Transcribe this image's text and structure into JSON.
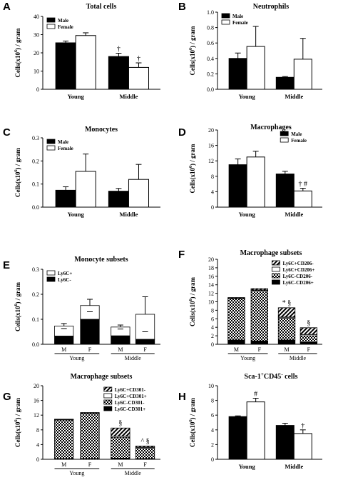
{
  "chart_data": [
    {
      "panel": "A",
      "type": "bar",
      "title": "Total cells",
      "categories": [
        "Young",
        "Middle"
      ],
      "ylim": [
        0,
        40
      ],
      "yticks": [
        0,
        10,
        20,
        30,
        40
      ],
      "legend": "top-left",
      "series": [
        {
          "name": "Male",
          "color": "#000000",
          "values": [
            25.5,
            18
          ],
          "errors": [
            1,
            1.8
          ],
          "annotations": [
            "",
            "†"
          ]
        },
        {
          "name": "Female",
          "color": "#ffffff",
          "values": [
            29.5,
            12
          ],
          "errors": [
            1.5,
            2.5
          ],
          "annotations": [
            "",
            "†"
          ]
        }
      ]
    },
    {
      "panel": "B",
      "type": "bar",
      "title": "Neutrophils",
      "categories": [
        "Young",
        "Middle"
      ],
      "ylim": [
        0,
        1.0
      ],
      "yticks": [
        0.0,
        0.2,
        0.4,
        0.6,
        0.8,
        1.0
      ],
      "legend": "top-left",
      "series": [
        {
          "name": "Male",
          "color": "#000000",
          "values": [
            0.4,
            0.155
          ],
          "errors": [
            0.07,
            0.01
          ],
          "annotations": [
            "",
            ""
          ]
        },
        {
          "name": "Female",
          "color": "#ffffff",
          "values": [
            0.555,
            0.39
          ],
          "errors": [
            0.26,
            0.27
          ],
          "annotations": [
            "",
            ""
          ]
        }
      ]
    },
    {
      "panel": "C",
      "type": "bar",
      "title": "Monocytes",
      "categories": [
        "Young",
        "Middle"
      ],
      "ylim": [
        0,
        0.3
      ],
      "yticks": [
        0.0,
        0.1,
        0.2,
        0.3
      ],
      "legend": "top-left",
      "series": [
        {
          "name": "Male",
          "color": "#000000",
          "values": [
            0.073,
            0.069
          ],
          "errors": [
            0.015,
            0.012
          ],
          "annotations": [
            "",
            ""
          ]
        },
        {
          "name": "Female",
          "color": "#ffffff",
          "values": [
            0.155,
            0.12
          ],
          "errors": [
            0.075,
            0.065
          ],
          "annotations": [
            "",
            ""
          ]
        }
      ]
    },
    {
      "panel": "D",
      "type": "bar",
      "title": "Macrophages",
      "categories": [
        "Young",
        "Middle"
      ],
      "ylim": [
        0,
        20
      ],
      "yticks": [
        0,
        4,
        8,
        12,
        16,
        20
      ],
      "legend": "top-right",
      "series": [
        {
          "name": "Male",
          "color": "#000000",
          "values": [
            11,
            8.6
          ],
          "errors": [
            1.5,
            0.7
          ],
          "annotations": [
            "",
            ""
          ]
        },
        {
          "name": "Female",
          "color": "#ffffff",
          "values": [
            13,
            4.2
          ],
          "errors": [
            1.5,
            0.7
          ],
          "annotations": [
            "",
            "† #"
          ]
        }
      ]
    },
    {
      "panel": "E",
      "type": "bar",
      "title": "Monocyte subsets",
      "ylim": [
        0,
        0.3
      ],
      "yticks": [
        0.0,
        0.1,
        0.2,
        0.3
      ],
      "legend": "top-left",
      "bar_labels": [
        "M",
        "F",
        "M",
        "F"
      ],
      "groups": [
        "Young",
        "Middle"
      ],
      "stack": [
        {
          "name": "Ly6C-",
          "pattern": "solid",
          "values": [
            0.033,
            0.1,
            0.034,
            0.02
          ],
          "errors": [
            0.008,
            0.045,
            0.005,
            0.005
          ]
        },
        {
          "name": "Ly6C+",
          "pattern": "white",
          "values": [
            0.04,
            0.055,
            0.035,
            0.1
          ],
          "errors": [
            0.01,
            0.025,
            0.008,
            0.07
          ]
        }
      ],
      "annotations": [
        "",
        "",
        "",
        ""
      ]
    },
    {
      "panel": "F",
      "type": "bar",
      "title": "Macrophage subsets",
      "ylim": [
        0,
        20
      ],
      "yticks": [
        0,
        2,
        4,
        6,
        8,
        10,
        12,
        14,
        16,
        18,
        20
      ],
      "legend": "top-right",
      "bar_labels": [
        "M",
        "F",
        "M",
        "F"
      ],
      "groups": [
        "Young",
        "Middle"
      ],
      "stack": [
        {
          "name": "Ly6C-CD206+",
          "pattern": "solid",
          "values": [
            1.0,
            0.8,
            1.0,
            0.5
          ]
        },
        {
          "name": "Ly6C-CD206-",
          "pattern": "checker",
          "values": [
            9.7,
            11.9,
            5.2,
            1.5
          ]
        },
        {
          "name": "Ly6C+CD206+",
          "pattern": "white",
          "values": [
            0.1,
            0.1,
            0.2,
            0.3
          ]
        },
        {
          "name": "Ly6C+CD206-",
          "pattern": "hatch",
          "values": [
            0.2,
            0.3,
            2.2,
            1.6
          ]
        }
      ],
      "annotations": [
        "",
        "",
        "* §",
        "§"
      ]
    },
    {
      "panel": "G",
      "type": "bar",
      "title": "Macrophage subsets",
      "ylim": [
        0,
        20
      ],
      "yticks": [
        0,
        4,
        8,
        12,
        16,
        20
      ],
      "legend": "top-right",
      "bar_labels": [
        "M",
        "F",
        "M",
        "F"
      ],
      "groups": [
        "Young",
        "Middle"
      ],
      "stack": [
        {
          "name": "Ly6C-CD301+",
          "pattern": "solid",
          "values": [
            0.2,
            0.2,
            0.3,
            0.2
          ]
        },
        {
          "name": "Ly6C-CD301-",
          "pattern": "checker",
          "values": [
            10.5,
            12.3,
            5.7,
            2.9
          ]
        },
        {
          "name": "Ly6C+CD301+",
          "pattern": "white",
          "values": [
            0.1,
            0.1,
            0.3,
            0.2
          ]
        },
        {
          "name": "Ly6C+CD301-",
          "pattern": "hatch",
          "values": [
            0.1,
            0.1,
            2.2,
            0.3
          ]
        }
      ],
      "annotations": [
        "",
        "",
        "§",
        "^ §"
      ]
    },
    {
      "panel": "H",
      "type": "bar",
      "title": "Sca-1⁺CD45⁻ cells",
      "categories": [
        "Young",
        "Middle"
      ],
      "ylim": [
        0,
        10
      ],
      "yticks": [
        0,
        2,
        4,
        6,
        8,
        10
      ],
      "legend": "none",
      "series": [
        {
          "name": "Male",
          "color": "#000000",
          "values": [
            5.8,
            4.6
          ],
          "errors": [
            0.1,
            0.3
          ],
          "annotations": [
            "",
            ""
          ]
        },
        {
          "name": "Female",
          "color": "#ffffff",
          "values": [
            7.8,
            3.5
          ],
          "errors": [
            0.5,
            0.5
          ],
          "annotations": [
            "#",
            "†"
          ]
        }
      ]
    }
  ]
}
